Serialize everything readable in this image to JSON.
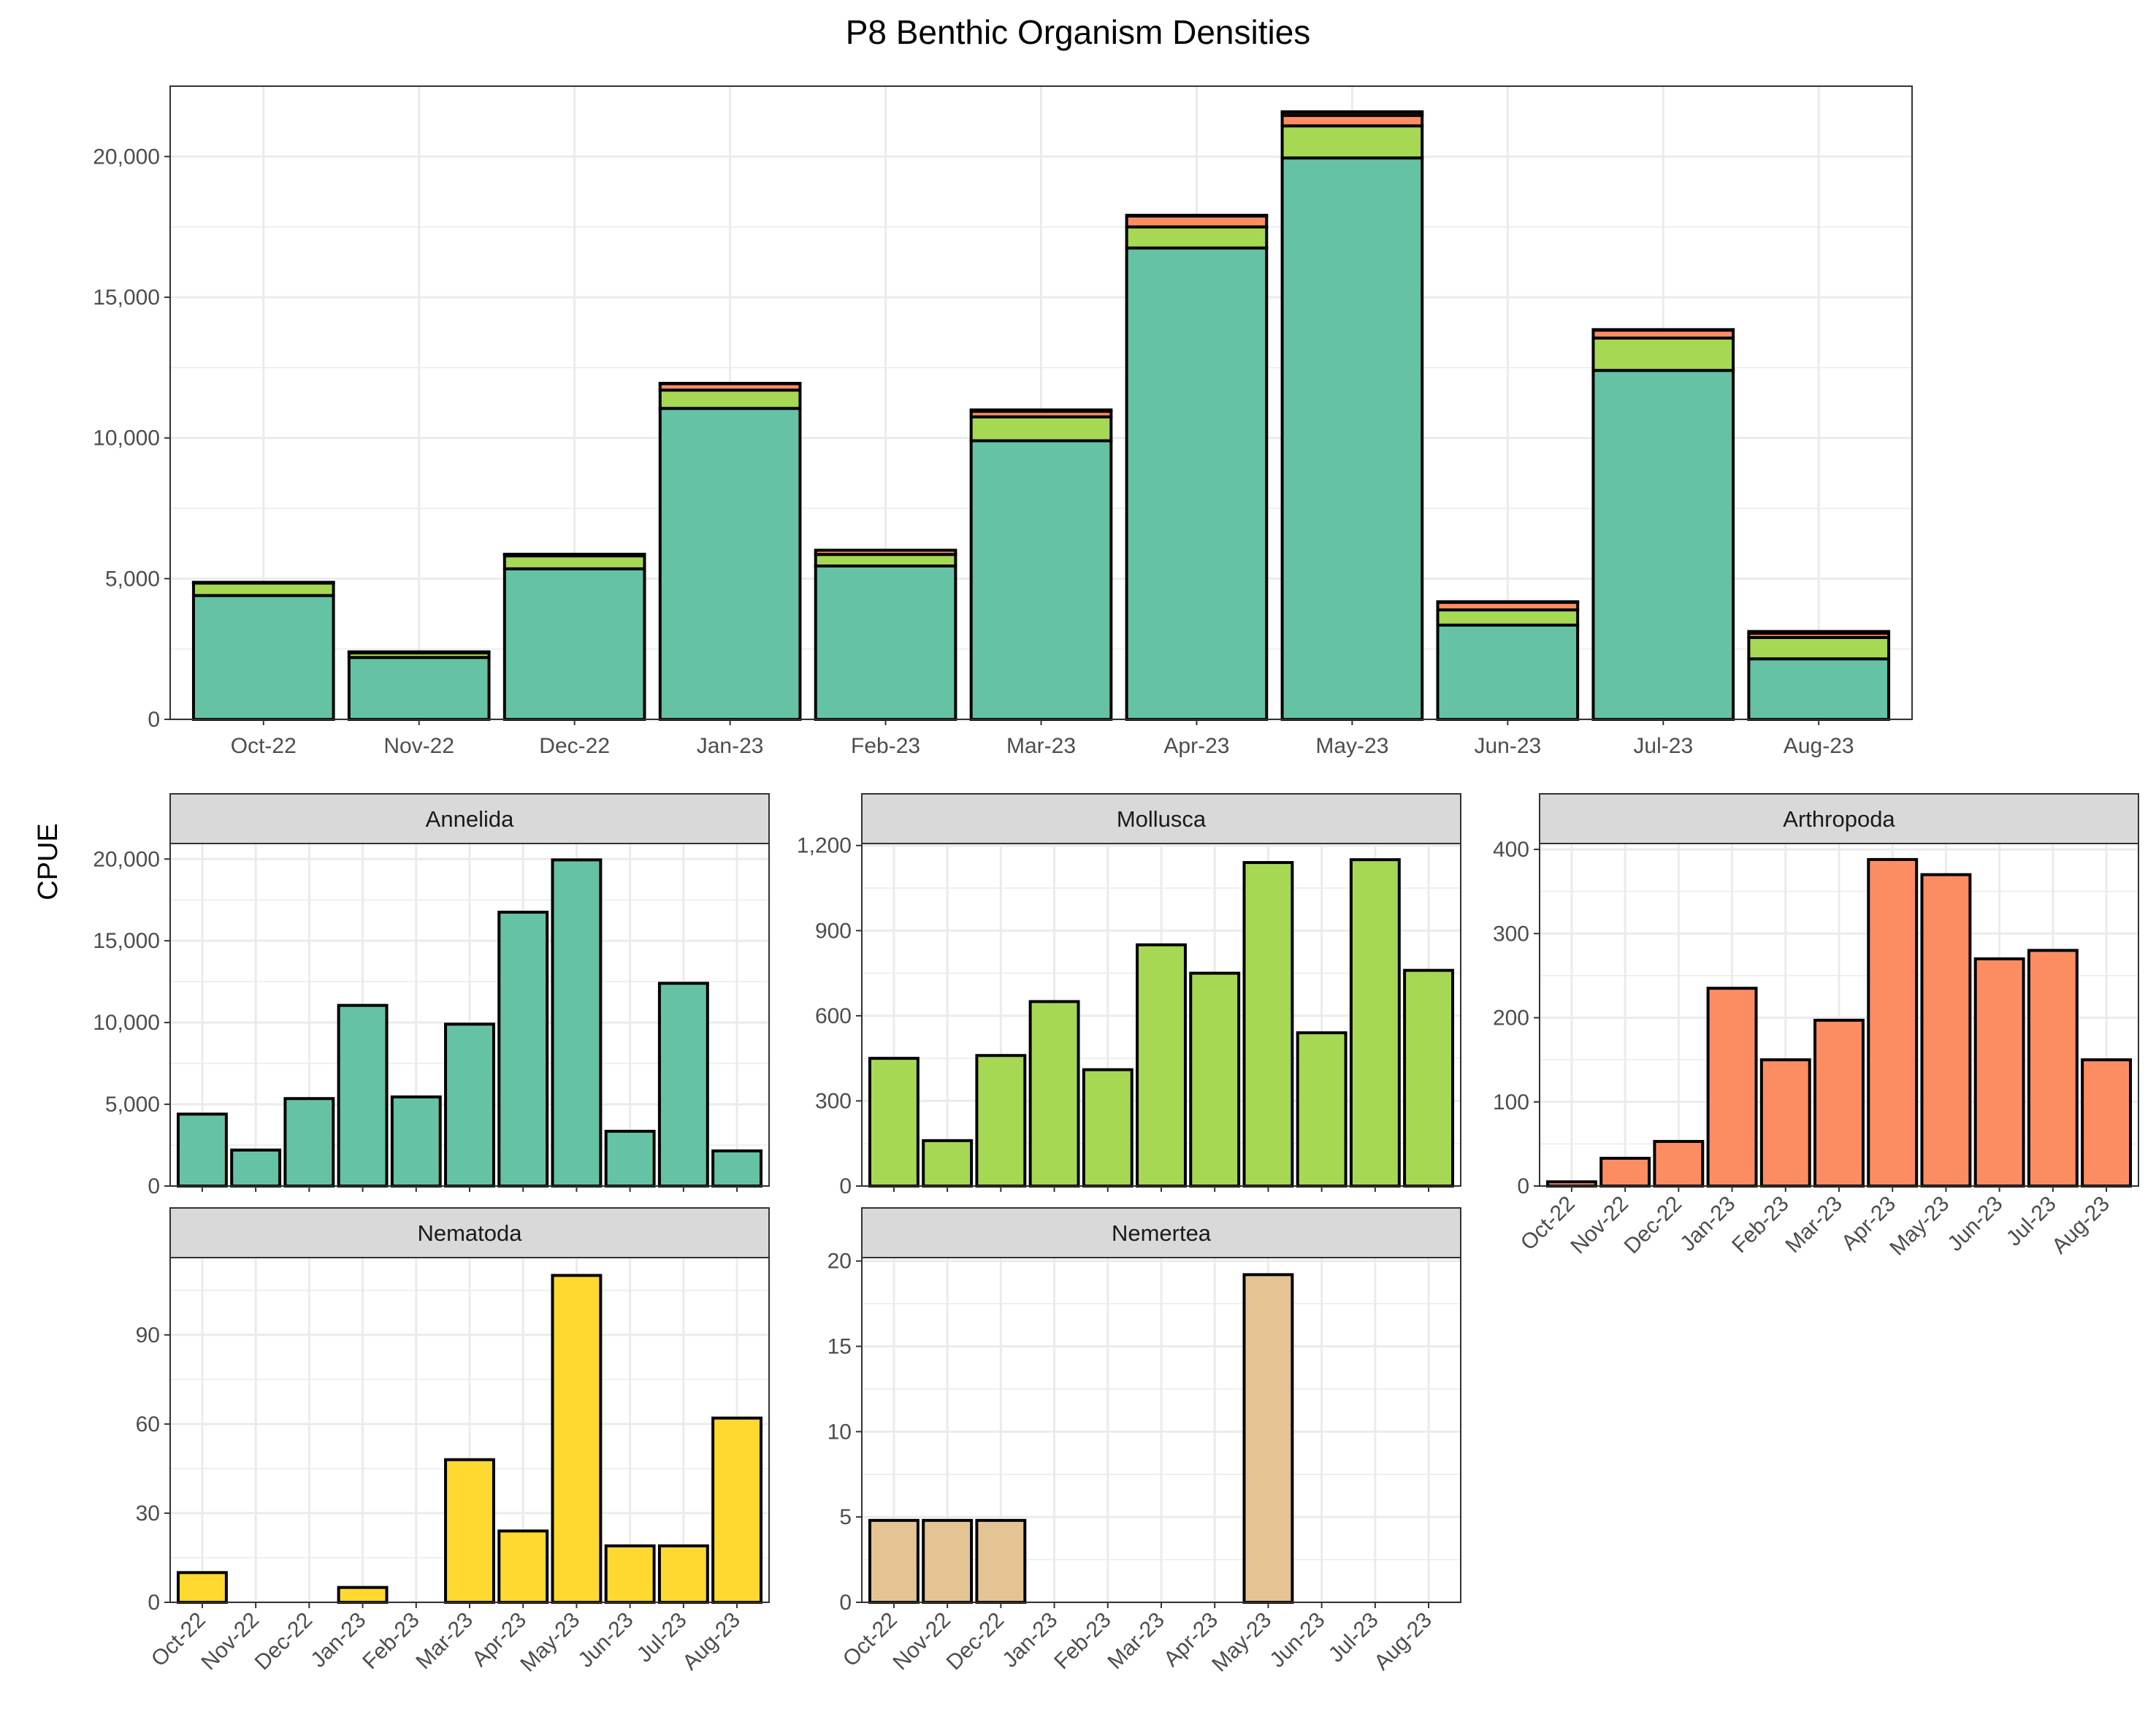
{
  "title": "P8 Benthic Organism Densities",
  "ylabel": "CPUE",
  "colors": {
    "Annelida": "#66c2a5",
    "Mollusca": "#a6d854",
    "Arthropoda": "#fc8d62",
    "Nematoda": "#ffd92f",
    "Nemertea": "#e5c494",
    "strip_fill": "#d9d9d9",
    "grid": "#ebebeb",
    "bar_stroke": "#000000"
  },
  "chart_data": [
    {
      "type": "bar",
      "stacked": true,
      "grid": true,
      "legend": "none",
      "categories": [
        "Oct-22",
        "Nov-22",
        "Dec-22",
        "Jan-23",
        "Feb-23",
        "Mar-23",
        "Apr-23",
        "May-23",
        "Jun-23",
        "Jul-23",
        "Aug-23"
      ],
      "ylim": [
        0,
        22500
      ],
      "yticks": [
        0,
        5000,
        10000,
        15000,
        20000
      ],
      "ytick_labels": [
        "0",
        "5,000",
        "10,000",
        "15,000",
        "20,000"
      ],
      "series": [
        {
          "name": "Annelida",
          "values": [
            4400,
            2200,
            5350,
            11050,
            5450,
            9900,
            16750,
            19950,
            3350,
            12400,
            2150
          ]
        },
        {
          "name": "Mollusca",
          "values": [
            450,
            160,
            460,
            650,
            410,
            850,
            750,
            1140,
            540,
            1150,
            760
          ]
        },
        {
          "name": "Arthropoda",
          "values": [
            5,
            33,
            53,
            235,
            150,
            197,
            388,
            370,
            270,
            280,
            150
          ]
        },
        {
          "name": "Nematoda",
          "values": [
            10,
            0,
            0,
            5,
            0,
            48,
            24,
            110,
            19,
            19,
            62
          ]
        },
        {
          "name": "Nemertea",
          "values": [
            4.8,
            4.8,
            4.8,
            0,
            0,
            0,
            0,
            19.2,
            0,
            0,
            0
          ]
        }
      ]
    },
    {
      "type": "bar",
      "panel": "Annelida",
      "grid": true,
      "show_xticks": false,
      "categories": [
        "Oct-22",
        "Nov-22",
        "Dec-22",
        "Jan-23",
        "Feb-23",
        "Mar-23",
        "Apr-23",
        "May-23",
        "Jun-23",
        "Jul-23",
        "Aug-23"
      ],
      "values": [
        4400,
        2200,
        5350,
        11050,
        5450,
        9900,
        16750,
        19950,
        3350,
        12400,
        2150
      ],
      "ylim": [
        0,
        20950
      ],
      "yticks": [
        0,
        5000,
        10000,
        15000,
        20000
      ],
      "ytick_labels": [
        "0",
        "5,000",
        "10,000",
        "15,000",
        "20,000"
      ]
    },
    {
      "type": "bar",
      "panel": "Mollusca",
      "grid": true,
      "show_xticks": false,
      "categories": [
        "Oct-22",
        "Nov-22",
        "Dec-22",
        "Jan-23",
        "Feb-23",
        "Mar-23",
        "Apr-23",
        "May-23",
        "Jun-23",
        "Jul-23",
        "Aug-23"
      ],
      "values": [
        450,
        160,
        460,
        650,
        410,
        850,
        750,
        1140,
        540,
        1150,
        760
      ],
      "ylim": [
        0,
        1207
      ],
      "yticks": [
        0,
        300,
        600,
        900,
        1200
      ],
      "ytick_labels": [
        "0",
        "300",
        "600",
        "900",
        "1,200"
      ]
    },
    {
      "type": "bar",
      "panel": "Arthropoda",
      "grid": true,
      "show_xticks": true,
      "categories": [
        "Oct-22",
        "Nov-22",
        "Dec-22",
        "Jan-23",
        "Feb-23",
        "Mar-23",
        "Apr-23",
        "May-23",
        "Jun-23",
        "Jul-23",
        "Aug-23"
      ],
      "values": [
        5,
        33,
        53,
        235,
        150,
        197,
        388,
        370,
        270,
        280,
        150
      ],
      "ylim": [
        0,
        407
      ],
      "yticks": [
        0,
        100,
        200,
        300,
        400
      ],
      "ytick_labels": [
        "0",
        "100",
        "200",
        "300",
        "400"
      ]
    },
    {
      "type": "bar",
      "panel": "Nematoda",
      "grid": true,
      "show_xticks": true,
      "categories": [
        "Oct-22",
        "Nov-22",
        "Dec-22",
        "Jan-23",
        "Feb-23",
        "Mar-23",
        "Apr-23",
        "May-23",
        "Jun-23",
        "Jul-23",
        "Aug-23"
      ],
      "values": [
        10,
        0,
        0,
        5,
        0,
        48,
        24,
        110,
        19,
        19,
        62
      ],
      "ylim": [
        0,
        116
      ],
      "yticks": [
        0,
        30,
        60,
        90
      ],
      "ytick_labels": [
        "0",
        "30",
        "60",
        "90"
      ]
    },
    {
      "type": "bar",
      "panel": "Nemertea",
      "grid": true,
      "show_xticks": true,
      "categories": [
        "Oct-22",
        "Nov-22",
        "Dec-22",
        "Jan-23",
        "Feb-23",
        "Mar-23",
        "Apr-23",
        "May-23",
        "Jun-23",
        "Jul-23",
        "Aug-23"
      ],
      "values": [
        4.8,
        4.8,
        4.8,
        0,
        0,
        0,
        0,
        19.2,
        0,
        0,
        0
      ],
      "ylim": [
        0,
        20.2
      ],
      "yticks": [
        0,
        5,
        10,
        15,
        20
      ],
      "ytick_labels": [
        "0",
        "5",
        "10",
        "15",
        "20"
      ]
    }
  ]
}
